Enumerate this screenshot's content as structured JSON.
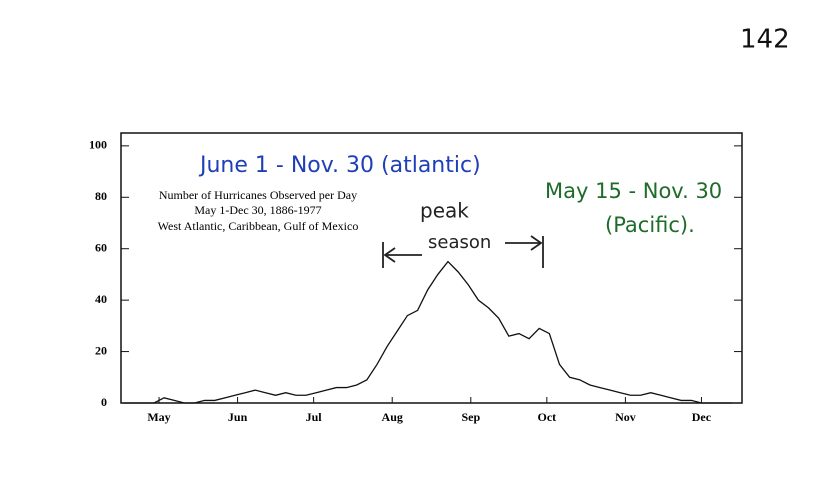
{
  "page_number": "142",
  "chart_data": {
    "type": "line",
    "title_lines": [
      "Number of Hurricanes Observed per Day",
      "May 1-Dec 30, 1886-1977",
      "West Atlantic, Caribbean, Gulf of Mexico"
    ],
    "annotations": {
      "atlantic": "June 1 - Nov. 30 (atlantic)",
      "pacific_1": "May 15 - Nov. 30",
      "pacific_2": "(Pacific).",
      "peak_1": "peak",
      "peak_2": "season"
    },
    "x": [
      1,
      5,
      9,
      13,
      17,
      21,
      25,
      29,
      33,
      37,
      41,
      45,
      49,
      53,
      57,
      61,
      65,
      69,
      73,
      77,
      81,
      85,
      89,
      93,
      97,
      101,
      105,
      109,
      113,
      117,
      121,
      125,
      129,
      133,
      137,
      141,
      145,
      149,
      153,
      157,
      161,
      165,
      169,
      173,
      177,
      181,
      185,
      189,
      193,
      197,
      201,
      205,
      209,
      213,
      217,
      221,
      225,
      229,
      233,
      237,
      241
    ],
    "series": [
      {
        "name": "Hurricanes per day",
        "color": "#111111",
        "values": [
          0,
          0,
          0,
          0,
          2,
          1,
          0,
          0,
          1,
          1,
          2,
          3,
          4,
          5,
          4,
          3,
          4,
          3,
          3,
          4,
          5,
          6,
          6,
          7,
          9,
          15,
          22,
          28,
          34,
          36,
          44,
          50,
          55,
          51,
          46,
          40,
          37,
          33,
          26,
          27,
          25,
          29,
          27,
          15,
          10,
          9,
          7,
          6,
          5,
          4,
          3,
          3,
          4,
          3,
          2,
          1,
          1,
          0,
          0,
          0,
          0
        ]
      }
    ],
    "xlim": [
      0,
      245
    ],
    "xticks": [
      {
        "value": 15,
        "label": "May"
      },
      {
        "value": 46,
        "label": "Jun"
      },
      {
        "value": 76,
        "label": "Jul"
      },
      {
        "value": 107,
        "label": "Aug"
      },
      {
        "value": 138,
        "label": "Sep"
      },
      {
        "value": 168,
        "label": "Oct"
      },
      {
        "value": 199,
        "label": "Nov"
      },
      {
        "value": 229,
        "label": "Dec"
      }
    ],
    "ylim": [
      0,
      105
    ],
    "yticks": [
      0,
      20,
      40,
      60,
      80,
      100
    ]
  }
}
